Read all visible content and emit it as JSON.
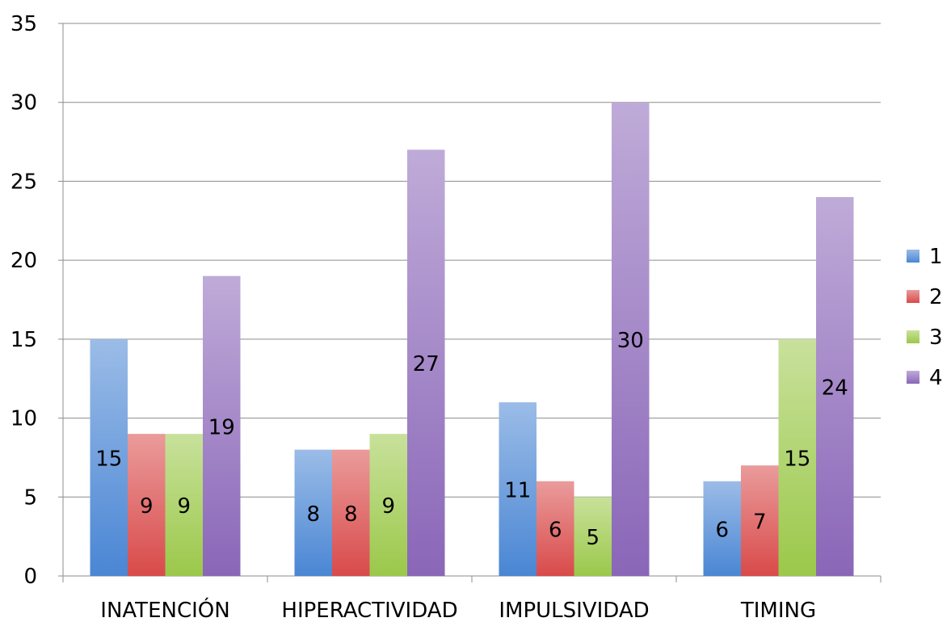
{
  "chart_data": {
    "type": "bar",
    "categories": [
      "INATENCIÓN",
      "HIPERACTIVIDAD",
      "IMPULSIVIDAD",
      "TIMING"
    ],
    "series": [
      {
        "name": "1",
        "values": [
          15,
          8,
          11,
          6
        ],
        "color": "#4A86D4"
      },
      {
        "name": "2",
        "values": [
          9,
          8,
          6,
          7
        ],
        "color": "#D94A4A"
      },
      {
        "name": "3",
        "values": [
          9,
          9,
          5,
          15
        ],
        "color": "#9BC84A"
      },
      {
        "name": "4",
        "values": [
          19,
          27,
          30,
          24
        ],
        "color": "#8A66B8"
      }
    ],
    "ylim": [
      0,
      35
    ],
    "yticks": [
      0,
      5,
      10,
      15,
      20,
      25,
      30,
      35
    ],
    "grid": true,
    "legend_position": "right",
    "data_labels": true
  }
}
